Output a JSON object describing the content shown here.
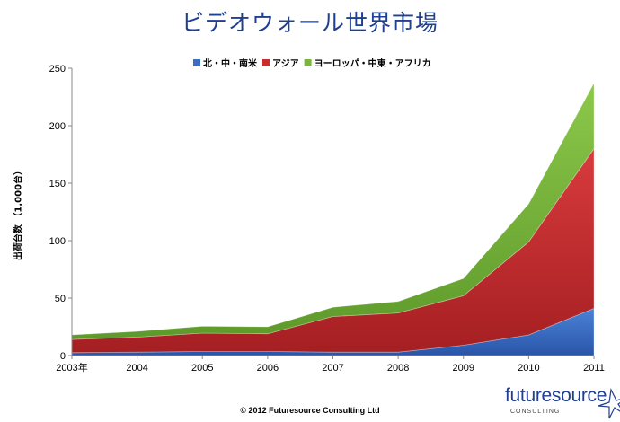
{
  "chart_data": {
    "type": "area",
    "stacked": true,
    "title": "ビデオウォール世界市場",
    "ylabel": "出荷台数 （1,000台）",
    "xlabel": "",
    "categories": [
      "2003年",
      "2004",
      "2005",
      "2006",
      "2007",
      "2008",
      "2009",
      "2010",
      "2011"
    ],
    "ylim": [
      0,
      250
    ],
    "yticks": [
      0,
      50,
      100,
      150,
      200,
      250
    ],
    "legend_position": "top",
    "series": [
      {
        "name": "北・中・南米",
        "color": "#3a6fc4",
        "values": [
          2.5,
          3,
          3.5,
          3.5,
          3,
          3,
          9,
          18,
          41
        ]
      },
      {
        "name": "アジア",
        "color": "#c82e30",
        "values": [
          11.5,
          13,
          16,
          15.5,
          31,
          34,
          43,
          81,
          139
        ]
      },
      {
        "name": "ヨーロッパ・中東・アフリカ",
        "color": "#7cb53c",
        "values": [
          4,
          5,
          6,
          6,
          8,
          10,
          15,
          33,
          57
        ]
      }
    ],
    "grid": false
  },
  "footer": "© 2012 Futuresource Consulting Ltd",
  "logo": {
    "name": "futuresource",
    "sub": "CONSULTING"
  }
}
